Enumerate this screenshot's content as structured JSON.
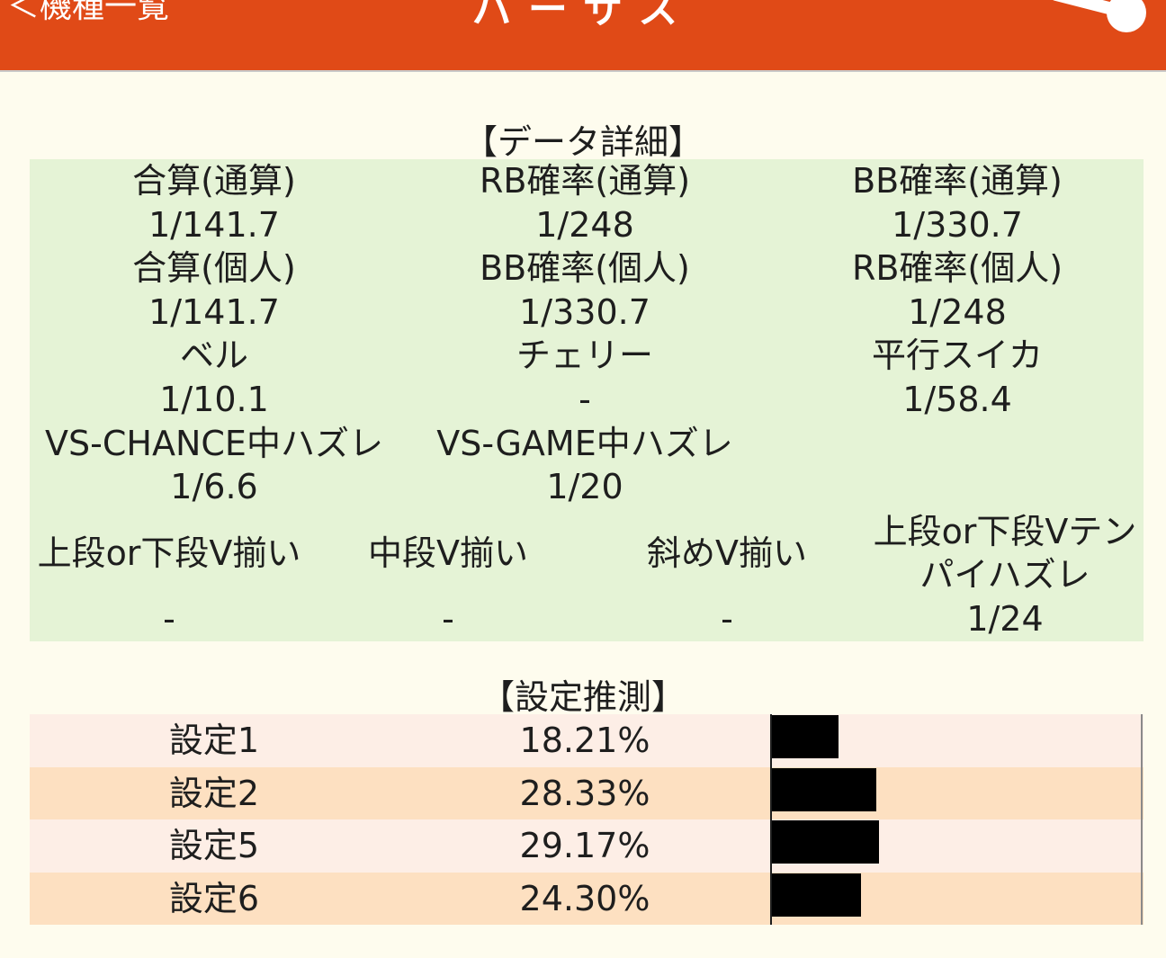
{
  "header": {
    "back_label": "＜機種一覧",
    "title": "バーサス",
    "share_icon": "share-icon",
    "background_color": "#e04a17"
  },
  "data_detail": {
    "title": "【データ詳細】",
    "rows": [
      {
        "labels": [
          "合算(通算)",
          "RB確率(通算)",
          "BB確率(通算)"
        ],
        "values": [
          "1/141.7",
          "1/248",
          "1/330.7"
        ]
      },
      {
        "labels": [
          "合算(個人)",
          "BB確率(個人)",
          "RB確率(個人)"
        ],
        "values": [
          "1/141.7",
          "1/330.7",
          "1/248"
        ]
      },
      {
        "labels": [
          "ベル",
          "チェリー",
          "平行スイカ"
        ],
        "values": [
          "1/10.1",
          "-",
          "1/58.4"
        ]
      },
      {
        "labels": [
          "VS-CHANCE中ハズレ",
          "VS-GAME中ハズレ"
        ],
        "values": [
          "1/6.6",
          "1/20"
        ]
      },
      {
        "labels": [
          "上段or下段V揃い",
          "中段V揃い",
          "斜めV揃い",
          "上段or下段Vテンパイハズレ"
        ],
        "label_lines": [
          "上段or下段Vテン",
          "パイハズレ"
        ],
        "values": [
          "-",
          "-",
          "-",
          "1/24"
        ]
      }
    ],
    "background_color": "#e5f3d6"
  },
  "setting_guess": {
    "title": "【設定推測】",
    "rows": [
      {
        "label": "設定1",
        "percent": "18.21%",
        "value": 18.21
      },
      {
        "label": "設定2",
        "percent": "28.33%",
        "value": 28.33
      },
      {
        "label": "設定5",
        "percent": "29.17%",
        "value": 29.17
      },
      {
        "label": "設定6",
        "percent": "24.30%",
        "value": 24.3
      }
    ],
    "row_colors": [
      "#fdeee6",
      "#fde0c1"
    ],
    "bar_color": "#000000"
  }
}
